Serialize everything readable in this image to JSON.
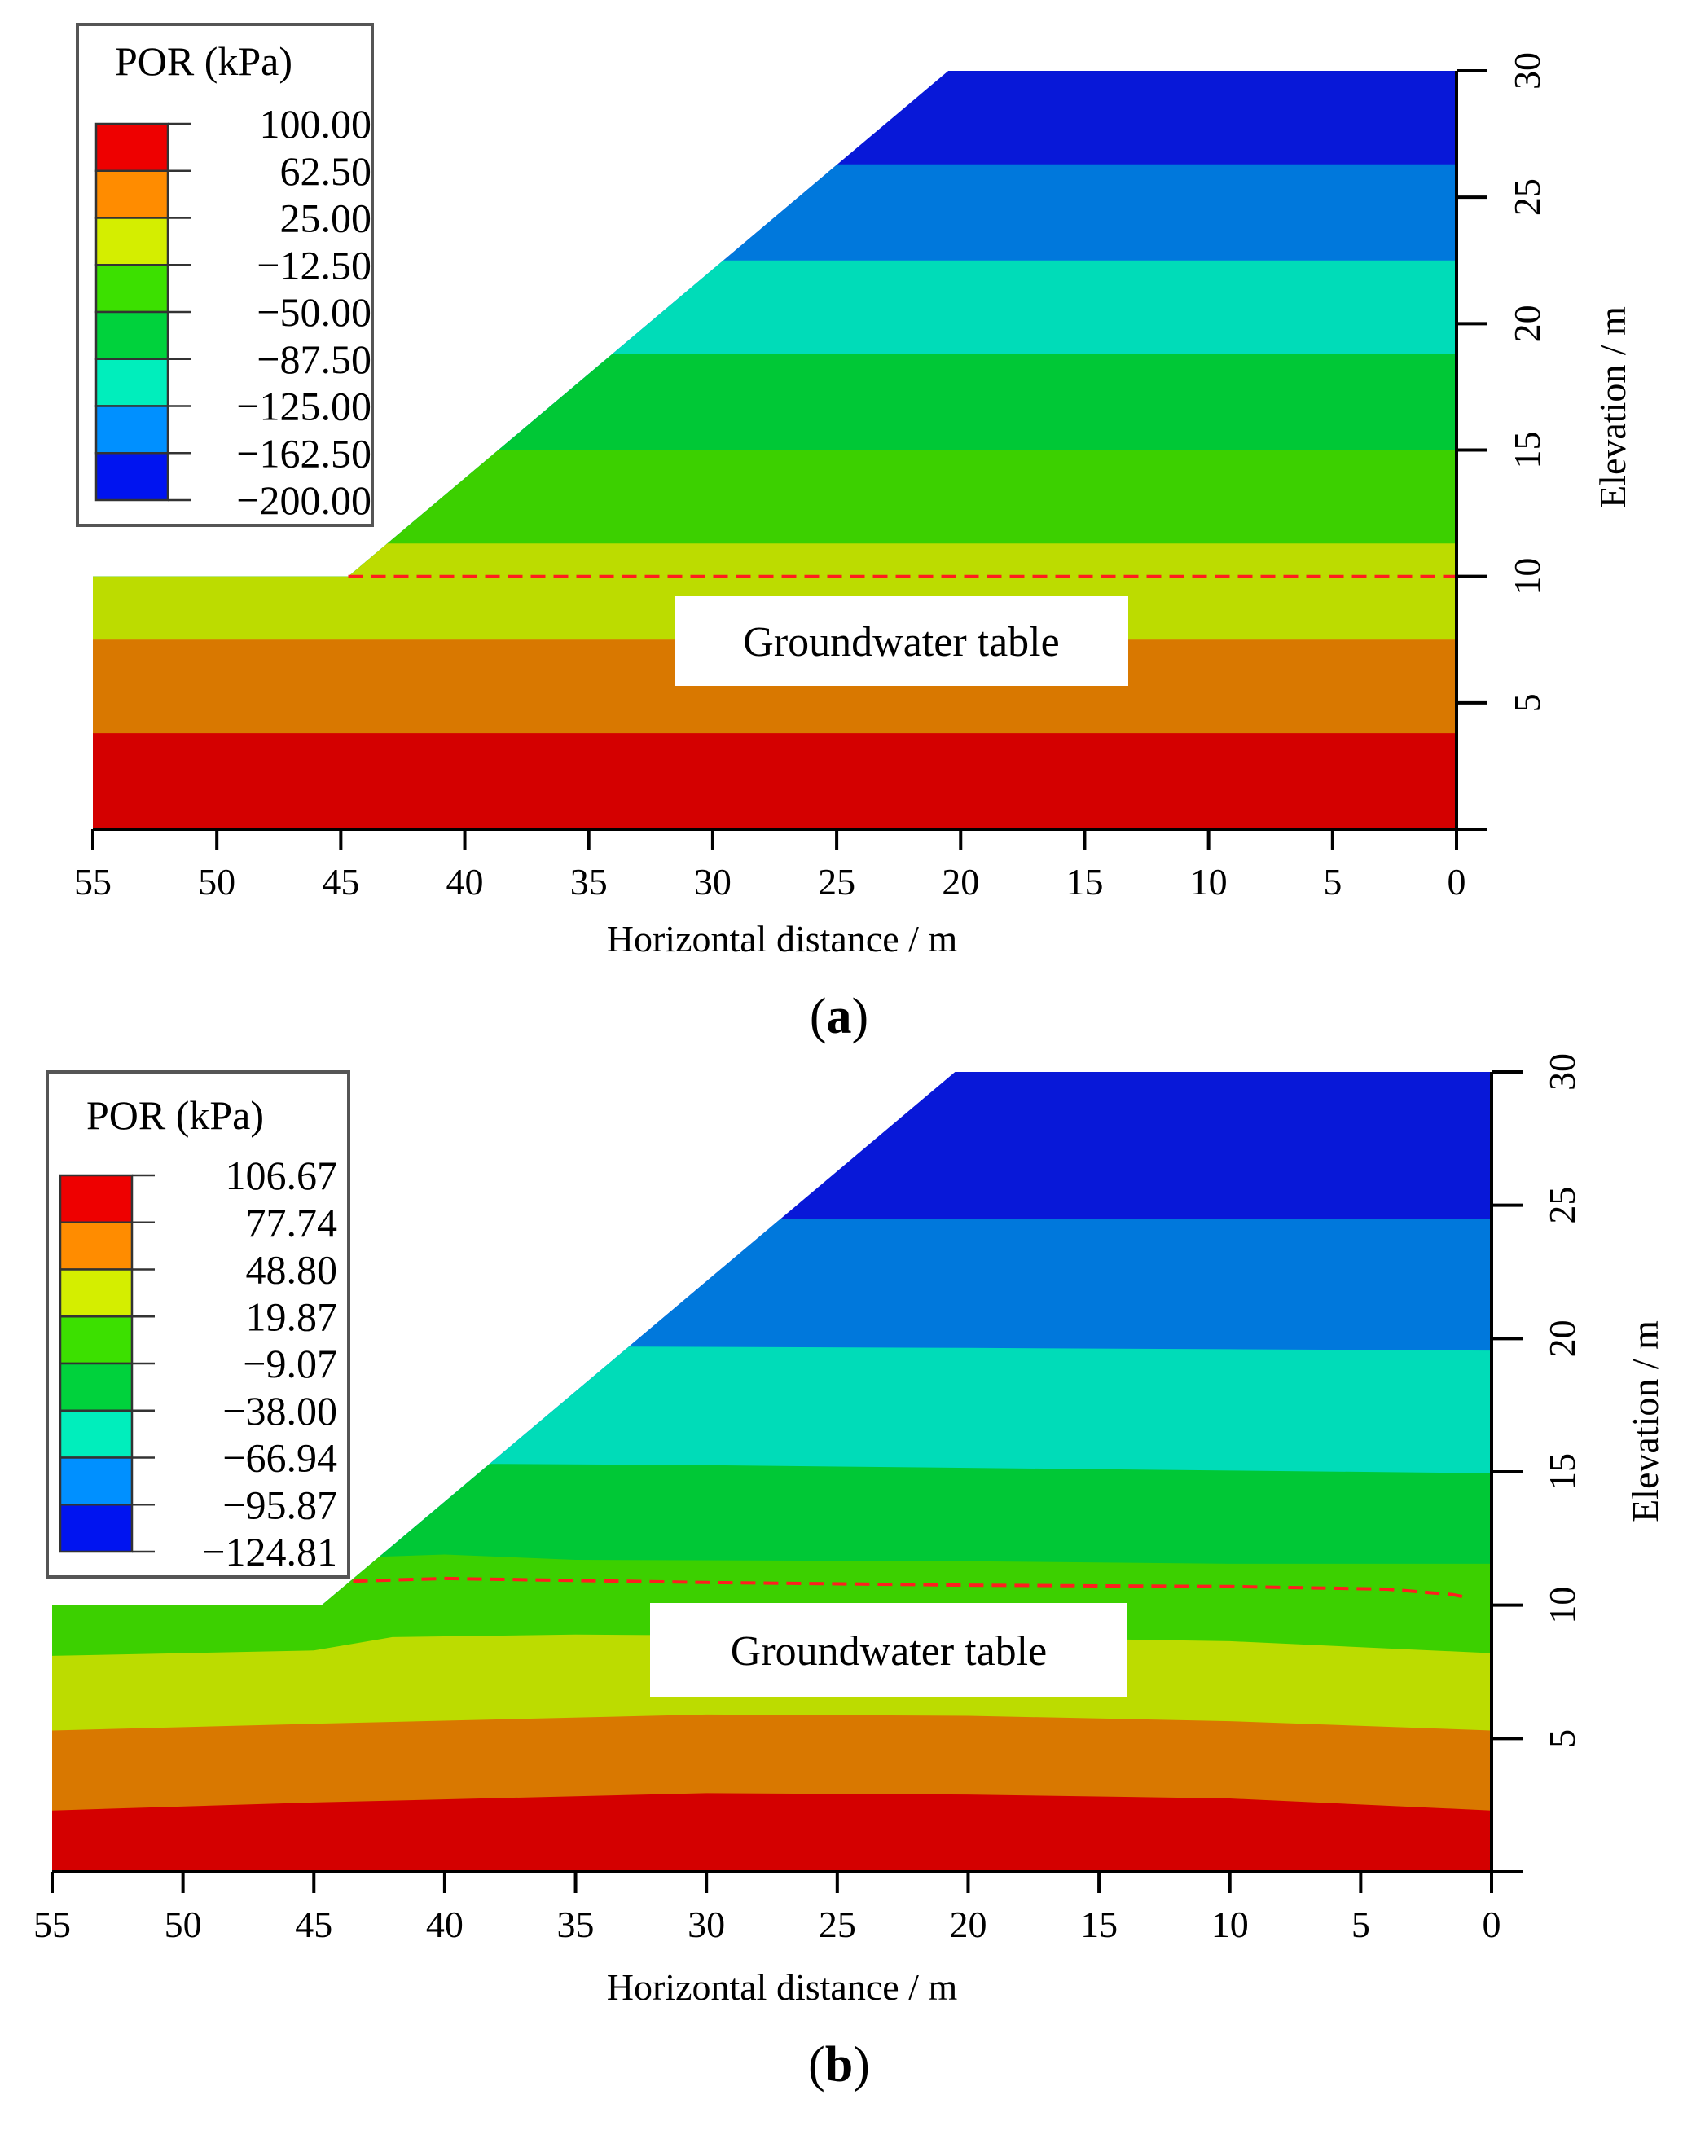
{
  "chart_data": [
    {
      "type": "heatmap",
      "panel_label": "a",
      "panel_prefix": "(",
      "panel_suffix": ")",
      "legend_title": "POR (kPa)",
      "legend_values": [
        "100.00",
        "62.50",
        "25.00",
        "−12.50",
        "−50.00",
        "−87.50",
        "−125.00",
        "−162.50",
        "−200.00"
      ],
      "legend_colors": [
        "#ee0000",
        "#ff8c00",
        "#d4ee00",
        "#3ce000",
        "#00d23c",
        "#00eebc",
        "#0090ff",
        "#0014f0"
      ],
      "xlabel": "Horizontal distance / m",
      "ylabel": "Elevation / m",
      "xlim": [
        55,
        0
      ],
      "ylim": [
        0,
        30
      ],
      "x_ticks": [
        "55",
        "50",
        "45",
        "40",
        "35",
        "30",
        "25",
        "20",
        "15",
        "10",
        "5",
        "0"
      ],
      "y_ticks": [
        "5",
        "10",
        "15",
        "20",
        "25",
        "30"
      ],
      "slope_profile": [
        [
          55,
          0
        ],
        [
          55,
          10
        ],
        [
          44.7,
          10
        ],
        [
          20.5,
          30
        ],
        [
          0,
          30
        ],
        [
          0,
          0
        ]
      ],
      "annotation": "Groundwater table",
      "water_table": [
        [
          44.7,
          10
        ],
        [
          0,
          10
        ]
      ],
      "bands": [
        {
          "color": "#d40000",
          "left": [
            0,
            3.8
          ],
          "mid": [
            3.8
          ],
          "right": [
            0,
            3.8
          ]
        },
        {
          "color": "#d97800",
          "left": [
            3.8,
            7.5
          ],
          "mid": [
            7.5
          ],
          "right": [
            3.8,
            7.5
          ]
        },
        {
          "color": "#bcdc00",
          "left": [
            7.5,
            11.3
          ],
          "mid": [
            11.3
          ],
          "right": [
            7.5,
            11.3
          ]
        },
        {
          "color": "#3cd000",
          "left": [
            11.3,
            15.0
          ],
          "mid": [
            15.0
          ],
          "right": [
            11.3,
            15.0
          ]
        },
        {
          "color": "#00c836",
          "left": [
            15.0,
            18.8
          ],
          "mid": [
            18.8
          ],
          "right": [
            15.0,
            18.8
          ]
        },
        {
          "color": "#00dcb8",
          "left": [
            18.8,
            22.5
          ],
          "mid": [
            22.5
          ],
          "right": [
            18.8,
            22.5
          ]
        },
        {
          "color": "#0078dc",
          "left": [
            22.5,
            26.3
          ],
          "mid": [
            26.3
          ],
          "right": [
            22.5,
            26.3
          ]
        },
        {
          "color": "#0818d8",
          "left": [
            26.3,
            30
          ],
          "mid": [
            30
          ],
          "right": [
            26.3,
            30
          ]
        }
      ]
    },
    {
      "type": "heatmap",
      "panel_label": "b",
      "panel_prefix": "(",
      "panel_suffix": ")",
      "legend_title": "POR (kPa)",
      "legend_values": [
        "106.67",
        "77.74",
        "48.80",
        "19.87",
        "−9.07",
        "−38.00",
        "−66.94",
        "−95.87",
        "−124.81"
      ],
      "legend_colors": [
        "#ee0000",
        "#ff8c00",
        "#d4ee00",
        "#3ce000",
        "#00d23c",
        "#00eebc",
        "#0090ff",
        "#0014f0"
      ],
      "xlabel": "Horizontal distance / m",
      "ylabel": "Elevation / m",
      "xlim": [
        55,
        0
      ],
      "ylim": [
        0,
        30
      ],
      "x_ticks": [
        "55",
        "50",
        "45",
        "40",
        "35",
        "30",
        "25",
        "20",
        "15",
        "10",
        "5",
        "0"
      ],
      "y_ticks": [
        "5",
        "10",
        "15",
        "20",
        "25",
        "30"
      ],
      "slope_profile": [
        [
          55,
          0
        ],
        [
          55,
          10
        ],
        [
          44.7,
          10
        ],
        [
          20.5,
          30
        ],
        [
          0,
          30
        ],
        [
          0,
          0
        ]
      ],
      "annotation": "Groundwater table",
      "water_table": [
        [
          43.5,
          10.9
        ],
        [
          40,
          11.0
        ],
        [
          30,
          10.85
        ],
        [
          20,
          10.75
        ],
        [
          10,
          10.7
        ],
        [
          4,
          10.6
        ],
        [
          1.5,
          10.4
        ],
        [
          1,
          10.3
        ]
      ],
      "bands": [
        {
          "color": "#d40000",
          "pts": [
            [
              55,
              2.3
            ],
            [
              45,
              2.6
            ],
            [
              30,
              2.95
            ],
            [
              20,
              2.9
            ],
            [
              10,
              2.75
            ],
            [
              0,
              2.3
            ]
          ]
        },
        {
          "color": "#d97800",
          "pts": [
            [
              55,
              5.3
            ],
            [
              45,
              5.55
            ],
            [
              30,
              5.9
            ],
            [
              20,
              5.85
            ],
            [
              10,
              5.65
            ],
            [
              0,
              5.3
            ]
          ]
        },
        {
          "color": "#bcdc00",
          "pts": [
            [
              55,
              8.1
            ],
            [
              45,
              8.3
            ],
            [
              42,
              8.8
            ],
            [
              35,
              8.9
            ],
            [
              20,
              8.8
            ],
            [
              10,
              8.65
            ],
            [
              0,
              8.2
            ]
          ]
        },
        {
          "color": "#3cd000",
          "pts": [
            [
              43,
              11.8
            ],
            [
              40,
              11.9
            ],
            [
              35,
              11.7
            ],
            [
              20,
              11.65
            ],
            [
              10,
              11.55
            ],
            [
              0,
              11.55
            ]
          ]
        },
        {
          "color": "#00c836",
          "pts": [
            [
              37.9,
              15.3
            ],
            [
              30,
              15.25
            ],
            [
              20,
              15.15
            ],
            [
              10,
              15.05
            ],
            [
              0,
              14.95
            ]
          ]
        },
        {
          "color": "#00dcb8",
          "pts": [
            [
              32.5,
              19.7
            ],
            [
              20,
              19.65
            ],
            [
              10,
              19.6
            ],
            [
              0,
              19.55
            ]
          ]
        },
        {
          "color": "#0078dc",
          "pts": [
            [
              26.5,
              24.5
            ],
            [
              0,
              24.5
            ]
          ]
        },
        {
          "color": "#0818d8",
          "pts": [
            [
              20.5,
              30
            ],
            [
              0,
              30
            ]
          ]
        }
      ]
    }
  ]
}
